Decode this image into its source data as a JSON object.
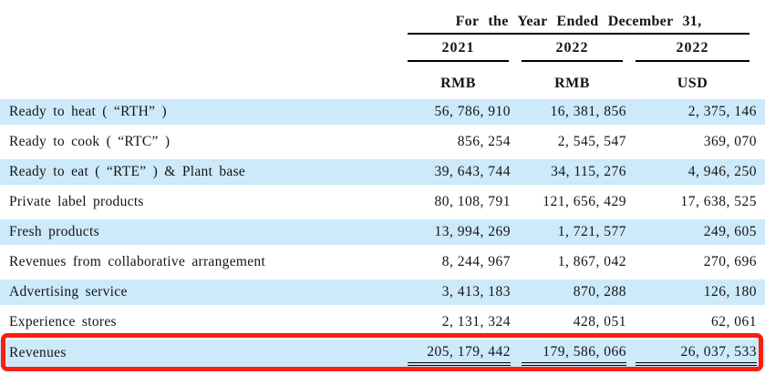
{
  "table": {
    "header": {
      "span_title": "For the Year Ended December 31,",
      "columns": [
        {
          "year": "2021",
          "currency": "RMB"
        },
        {
          "year": "2022",
          "currency": "RMB"
        },
        {
          "year": "2022",
          "currency": "USD"
        }
      ]
    },
    "rows": [
      {
        "label": "Ready to heat ( “RTH” )",
        "values": [
          "56, 786, 910",
          "16, 381, 856",
          "2, 375, 146"
        ]
      },
      {
        "label": "Ready to cook ( “RTC” )",
        "values": [
          "856, 254",
          "2, 545, 547",
          "369, 070"
        ]
      },
      {
        "label": "Ready to eat ( “RTE” ) & Plant base",
        "values": [
          "39, 643, 744",
          "34, 115, 276",
          "4, 946, 250"
        ]
      },
      {
        "label": "Private label products",
        "values": [
          "80, 108, 791",
          "121, 656, 429",
          "17, 638, 525"
        ]
      },
      {
        "label": "Fresh products",
        "values": [
          "13, 994, 269",
          "1, 721, 577",
          "249, 605"
        ]
      },
      {
        "label": "Revenues from collaborative arrangement",
        "values": [
          "8, 244, 967",
          "1, 867, 042",
          "270, 696"
        ]
      },
      {
        "label": "Advertising service",
        "values": [
          "3, 413, 183",
          "870, 288",
          "126, 180"
        ]
      },
      {
        "label": "Experience stores",
        "values": [
          "2, 131, 324",
          "428, 051",
          "62, 061"
        ]
      }
    ],
    "total": {
      "label": "Revenues",
      "values": [
        "205, 179, 442",
        "179, 586, 066",
        "26, 037, 533"
      ]
    }
  },
  "colors": {
    "stripe": "#cdeafb",
    "highlight_border": "#fa1e10",
    "rule": "#000000"
  }
}
